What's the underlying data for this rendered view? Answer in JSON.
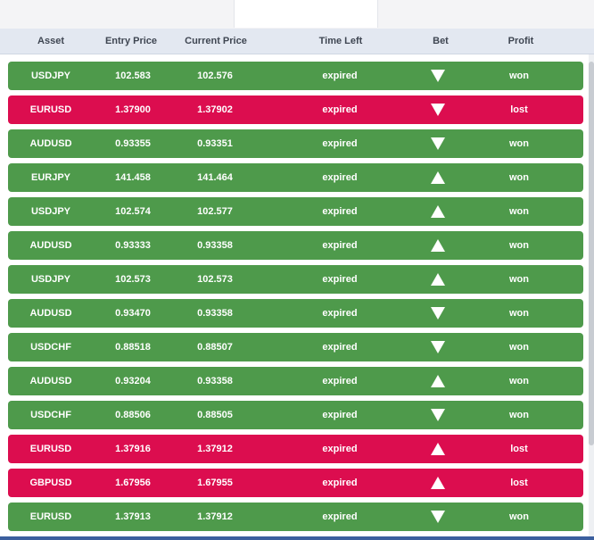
{
  "colors": {
    "won": "#4e9a4b",
    "lost": "#dc0d4f"
  },
  "table": {
    "headers": {
      "asset": "Asset",
      "entry_price": "Entry Price",
      "current_price": "Current Price",
      "time_left": "Time Left",
      "bet": "Bet",
      "profit": "Profit"
    },
    "rows": [
      {
        "asset": "USDJPY",
        "entry": "102.583",
        "current": "102.576",
        "time": "expired",
        "bet": "down",
        "profit": "won"
      },
      {
        "asset": "EURUSD",
        "entry": "1.37900",
        "current": "1.37902",
        "time": "expired",
        "bet": "down",
        "profit": "lost"
      },
      {
        "asset": "AUDUSD",
        "entry": "0.93355",
        "current": "0.93351",
        "time": "expired",
        "bet": "down",
        "profit": "won"
      },
      {
        "asset": "EURJPY",
        "entry": "141.458",
        "current": "141.464",
        "time": "expired",
        "bet": "up",
        "profit": "won"
      },
      {
        "asset": "USDJPY",
        "entry": "102.574",
        "current": "102.577",
        "time": "expired",
        "bet": "up",
        "profit": "won"
      },
      {
        "asset": "AUDUSD",
        "entry": "0.93333",
        "current": "0.93358",
        "time": "expired",
        "bet": "up",
        "profit": "won"
      },
      {
        "asset": "USDJPY",
        "entry": "102.573",
        "current": "102.573",
        "time": "expired",
        "bet": "up",
        "profit": "won"
      },
      {
        "asset": "AUDUSD",
        "entry": "0.93470",
        "current": "0.93358",
        "time": "expired",
        "bet": "down",
        "profit": "won"
      },
      {
        "asset": "USDCHF",
        "entry": "0.88518",
        "current": "0.88507",
        "time": "expired",
        "bet": "down",
        "profit": "won"
      },
      {
        "asset": "AUDUSD",
        "entry": "0.93204",
        "current": "0.93358",
        "time": "expired",
        "bet": "up",
        "profit": "won"
      },
      {
        "asset": "USDCHF",
        "entry": "0.88506",
        "current": "0.88505",
        "time": "expired",
        "bet": "down",
        "profit": "won"
      },
      {
        "asset": "EURUSD",
        "entry": "1.37916",
        "current": "1.37912",
        "time": "expired",
        "bet": "up",
        "profit": "lost"
      },
      {
        "asset": "GBPUSD",
        "entry": "1.67956",
        "current": "1.67955",
        "time": "expired",
        "bet": "up",
        "profit": "lost"
      },
      {
        "asset": "EURUSD",
        "entry": "1.37913",
        "current": "1.37912",
        "time": "expired",
        "bet": "down",
        "profit": "won"
      }
    ]
  }
}
